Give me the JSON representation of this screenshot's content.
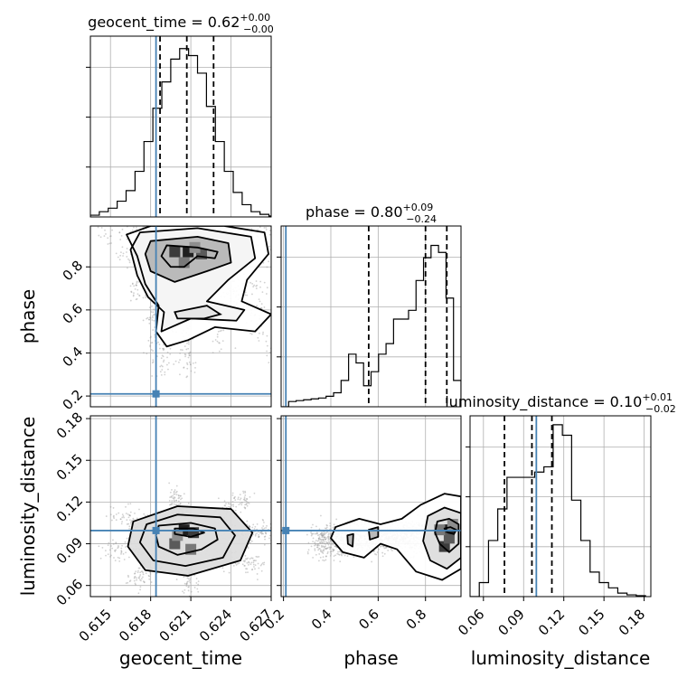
{
  "chart_data": {
    "type": "corner",
    "parameters": [
      "geocent_time",
      "phase",
      "luminosity_distance"
    ],
    "colors": {
      "truth": "#4682b4",
      "hist": "#000000",
      "grid": "#b0b0b0",
      "quantile": "#000000"
    },
    "diagonal": [
      {
        "parameter": "geocent_time",
        "title": {
          "main": "geocent_time = 0.62",
          "sup": "+0.00",
          "sub": "−0.00"
        },
        "xlim": [
          0.6135,
          0.627
        ],
        "xticks": [
          {
            "v": 0.615,
            "label": "0.615"
          },
          {
            "v": 0.618,
            "label": "0.618"
          },
          {
            "v": 0.621,
            "label": "0.621"
          },
          {
            "v": 0.624,
            "label": "0.624"
          },
          {
            "v": 0.627,
            "label": "0.627"
          }
        ],
        "bins": [
          0.6135,
          0.6275
        ],
        "heights": [
          0.01,
          0.03,
          0.05,
          0.09,
          0.15,
          0.26,
          0.43,
          0.62,
          0.77,
          0.9,
          0.96,
          0.92,
          0.82,
          0.63,
          0.43,
          0.26,
          0.14,
          0.07,
          0.03,
          0.015,
          0.005
        ],
        "quantiles": [
          0.6187,
          0.6207,
          0.6227
        ],
        "truth": 0.6184
      },
      {
        "parameter": "phase",
        "title": {
          "main": "phase = 0.80",
          "sup": "+0.09",
          "sub": "−0.24"
        },
        "xlim": [
          0.19,
          0.95
        ],
        "xticks": [
          {
            "v": 0.2,
            "label": "0.2"
          },
          {
            "v": 0.4,
            "label": "0.4"
          },
          {
            "v": 0.6,
            "label": "0.6"
          },
          {
            "v": 0.8,
            "label": "0.8"
          }
        ],
        "bins": [
          0.19,
          0.95
        ],
        "heights": [
          0.0,
          0.03,
          0.035,
          0.04,
          0.045,
          0.05,
          0.06,
          0.08,
          0.15,
          0.3,
          0.25,
          0.12,
          0.2,
          0.3,
          0.36,
          0.5,
          0.5,
          0.55,
          0.72,
          0.85,
          0.92,
          0.88,
          0.62,
          0.15
        ],
        "quantiles": [
          0.56,
          0.8,
          0.89
        ],
        "truth": 0.21
      },
      {
        "parameter": "luminosity_distance",
        "title": {
          "main": "luminosity_distance = 0.10",
          "sup": "+0.01",
          "sub": "−0.02"
        },
        "xlim": [
          0.05,
          0.185
        ],
        "xticks": [
          {
            "v": 0.06,
            "label": "0.06"
          },
          {
            "v": 0.09,
            "label": "0.09"
          },
          {
            "v": 0.12,
            "label": "0.12"
          },
          {
            "v": 0.15,
            "label": "0.15"
          },
          {
            "v": 0.18,
            "label": "0.18"
          }
        ],
        "bins": [
          0.05,
          0.181
        ],
        "heights": [
          0.0,
          0.08,
          0.32,
          0.5,
          0.68,
          0.68,
          0.68,
          0.71,
          0.74,
          0.98,
          0.92,
          0.55,
          0.32,
          0.14,
          0.08,
          0.05,
          0.02,
          0.01,
          0.005
        ],
        "quantiles": [
          0.0757,
          0.0962,
          0.1111
        ],
        "truth": 0.0995
      }
    ],
    "panels": [
      {
        "x": "geocent_time",
        "y": "phase",
        "ylim": [
          0.15,
          0.99
        ],
        "yticks": [
          {
            "v": 0.2,
            "label": "0.2"
          },
          {
            "v": 0.4,
            "label": "0.4"
          },
          {
            "v": 0.6,
            "label": "0.6"
          },
          {
            "v": 0.8,
            "label": "0.8"
          }
        ],
        "truth": [
          0.6184,
          0.21
        ],
        "contours": [
          [
            [
              0.6192,
              0.9
            ],
            [
              0.6215,
              0.89
            ],
            [
              0.623,
              0.87
            ],
            [
              0.6228,
              0.84
            ],
            [
              0.6215,
              0.85
            ],
            [
              0.6205,
              0.8
            ],
            [
              0.6195,
              0.8
            ],
            [
              0.6188,
              0.85
            ]
          ],
          [
            [
              0.618,
              0.92
            ],
            [
              0.6215,
              0.94
            ],
            [
              0.6238,
              0.91
            ],
            [
              0.624,
              0.82
            ],
            [
              0.6222,
              0.78
            ],
            [
              0.6198,
              0.73
            ],
            [
              0.618,
              0.78
            ],
            [
              0.6176,
              0.86
            ]
          ],
          [
            [
              0.6165,
              0.88
            ],
            [
              0.6172,
              0.96
            ],
            [
              0.6215,
              0.98
            ],
            [
              0.6255,
              0.94
            ],
            [
              0.6258,
              0.84
            ],
            [
              0.6238,
              0.74
            ],
            [
              0.6222,
              0.64
            ],
            [
              0.625,
              0.6
            ],
            [
              0.6244,
              0.55
            ],
            [
              0.621,
              0.56
            ],
            [
              0.6188,
              0.5
            ],
            [
              0.619,
              0.59
            ],
            [
              0.6178,
              0.66
            ],
            [
              0.617,
              0.76
            ]
          ],
          [
            [
              0.617,
              0.85
            ],
            [
              0.6162,
              0.95
            ],
            [
              0.618,
              0.99
            ],
            [
              0.6235,
              0.99
            ],
            [
              0.6265,
              0.96
            ],
            [
              0.6268,
              0.86
            ],
            [
              0.6252,
              0.74
            ],
            [
              0.6248,
              0.64
            ],
            [
              0.627,
              0.58
            ],
            [
              0.6258,
              0.5
            ],
            [
              0.6228,
              0.52
            ],
            [
              0.6208,
              0.46
            ],
            [
              0.6192,
              0.43
            ],
            [
              0.6184,
              0.5
            ],
            [
              0.6186,
              0.62
            ],
            [
              0.6176,
              0.72
            ]
          ]
        ],
        "inner_contour": [
          [
            0.6198,
            0.59
          ],
          [
            0.6222,
            0.62
          ],
          [
            0.6232,
            0.58
          ],
          [
            0.622,
            0.56
          ],
          [
            0.62,
            0.56
          ]
        ],
        "peaks": [
          [
            0.6208,
            0.87
          ],
          [
            0.6198,
            0.87
          ],
          [
            0.6218,
            0.86
          ],
          [
            0.6205,
            0.82
          ],
          [
            0.6213,
            0.89
          ]
        ]
      },
      {
        "x": "geocent_time",
        "y": "luminosity_distance",
        "ylim": [
          0.052,
          0.182
        ],
        "yticks": [
          {
            "v": 0.06,
            "label": "0.06"
          },
          {
            "v": 0.09,
            "label": "0.09"
          },
          {
            "v": 0.12,
            "label": "0.12"
          },
          {
            "v": 0.15,
            "label": "0.15"
          },
          {
            "v": 0.18,
            "label": "0.18"
          }
        ],
        "truth": [
          0.6184,
          0.0995
        ],
        "contours": [
          [
            [
              0.6198,
              0.101
            ],
            [
              0.6212,
              0.101
            ],
            [
              0.622,
              0.098
            ],
            [
              0.621,
              0.095
            ],
            [
              0.6198,
              0.097
            ]
          ],
          [
            [
              0.6186,
              0.103
            ],
            [
              0.621,
              0.105
            ],
            [
              0.6228,
              0.101
            ],
            [
              0.623,
              0.093
            ],
            [
              0.6218,
              0.086
            ],
            [
              0.62,
              0.082
            ],
            [
              0.6186,
              0.088
            ],
            [
              0.6184,
              0.096
            ]
          ],
          [
            [
              0.6177,
              0.104
            ],
            [
              0.62,
              0.111
            ],
            [
              0.6232,
              0.109
            ],
            [
              0.6243,
              0.096
            ],
            [
              0.6234,
              0.08
            ],
            [
              0.6206,
              0.074
            ],
            [
              0.6182,
              0.078
            ],
            [
              0.6172,
              0.091
            ]
          ],
          [
            [
              0.6167,
              0.106
            ],
            [
              0.62,
              0.117
            ],
            [
              0.624,
              0.115
            ],
            [
              0.6256,
              0.098
            ],
            [
              0.6247,
              0.078
            ],
            [
              0.6208,
              0.067
            ],
            [
              0.6176,
              0.071
            ],
            [
              0.6163,
              0.088
            ]
          ]
        ],
        "peaks": [
          [
            0.6205,
            0.1
          ],
          [
            0.6212,
            0.098
          ],
          [
            0.6198,
            0.09
          ],
          [
            0.621,
            0.086
          ],
          [
            0.62,
            0.096
          ]
        ]
      },
      {
        "x": "phase",
        "y": "luminosity_distance",
        "ylim": [
          0.052,
          0.182
        ],
        "truth": [
          0.21,
          0.0995
        ],
        "contours": [
          [
            [
              0.88,
              0.101
            ],
            [
              0.905,
              0.102
            ],
            [
              0.93,
              0.1
            ],
            [
              0.92,
              0.097
            ],
            [
              0.895,
              0.098
            ]
          ],
          [
            [
              0.85,
              0.106
            ],
            [
              0.9,
              0.108
            ],
            [
              0.94,
              0.104
            ],
            [
              0.94,
              0.09
            ],
            [
              0.9,
              0.084
            ],
            [
              0.86,
              0.09
            ],
            [
              0.84,
              0.098
            ]
          ],
          [
            [
              0.81,
              0.11
            ],
            [
              0.88,
              0.116
            ],
            [
              0.95,
              0.112
            ],
            [
              0.95,
              0.08
            ],
            [
              0.89,
              0.072
            ],
            [
              0.82,
              0.078
            ],
            [
              0.79,
              0.092
            ]
          ],
          [
            [
              0.42,
              0.102
            ],
            [
              0.52,
              0.108
            ],
            [
              0.61,
              0.104
            ],
            [
              0.7,
              0.108
            ],
            [
              0.78,
              0.118
            ],
            [
              0.88,
              0.126
            ],
            [
              0.95,
              0.124
            ],
            [
              0.95,
              0.072
            ],
            [
              0.87,
              0.064
            ],
            [
              0.76,
              0.07
            ],
            [
              0.68,
              0.086
            ],
            [
              0.61,
              0.09
            ],
            [
              0.54,
              0.08
            ],
            [
              0.45,
              0.084
            ],
            [
              0.4,
              0.094
            ]
          ],
          [
            [
              0.56,
              0.1
            ],
            [
              0.6,
              0.102
            ],
            [
              0.6,
              0.095
            ],
            [
              0.565,
              0.093
            ]
          ],
          [
            [
              0.47,
              0.096
            ],
            [
              0.495,
              0.097
            ],
            [
              0.492,
              0.088
            ],
            [
              0.472,
              0.09
            ]
          ]
        ],
        "peaks": [
          [
            0.9,
            0.1
          ],
          [
            0.88,
            0.088
          ],
          [
            0.9,
            0.094
          ],
          [
            0.86,
            0.1
          ],
          [
            0.915,
            0.104
          ]
        ]
      }
    ]
  }
}
